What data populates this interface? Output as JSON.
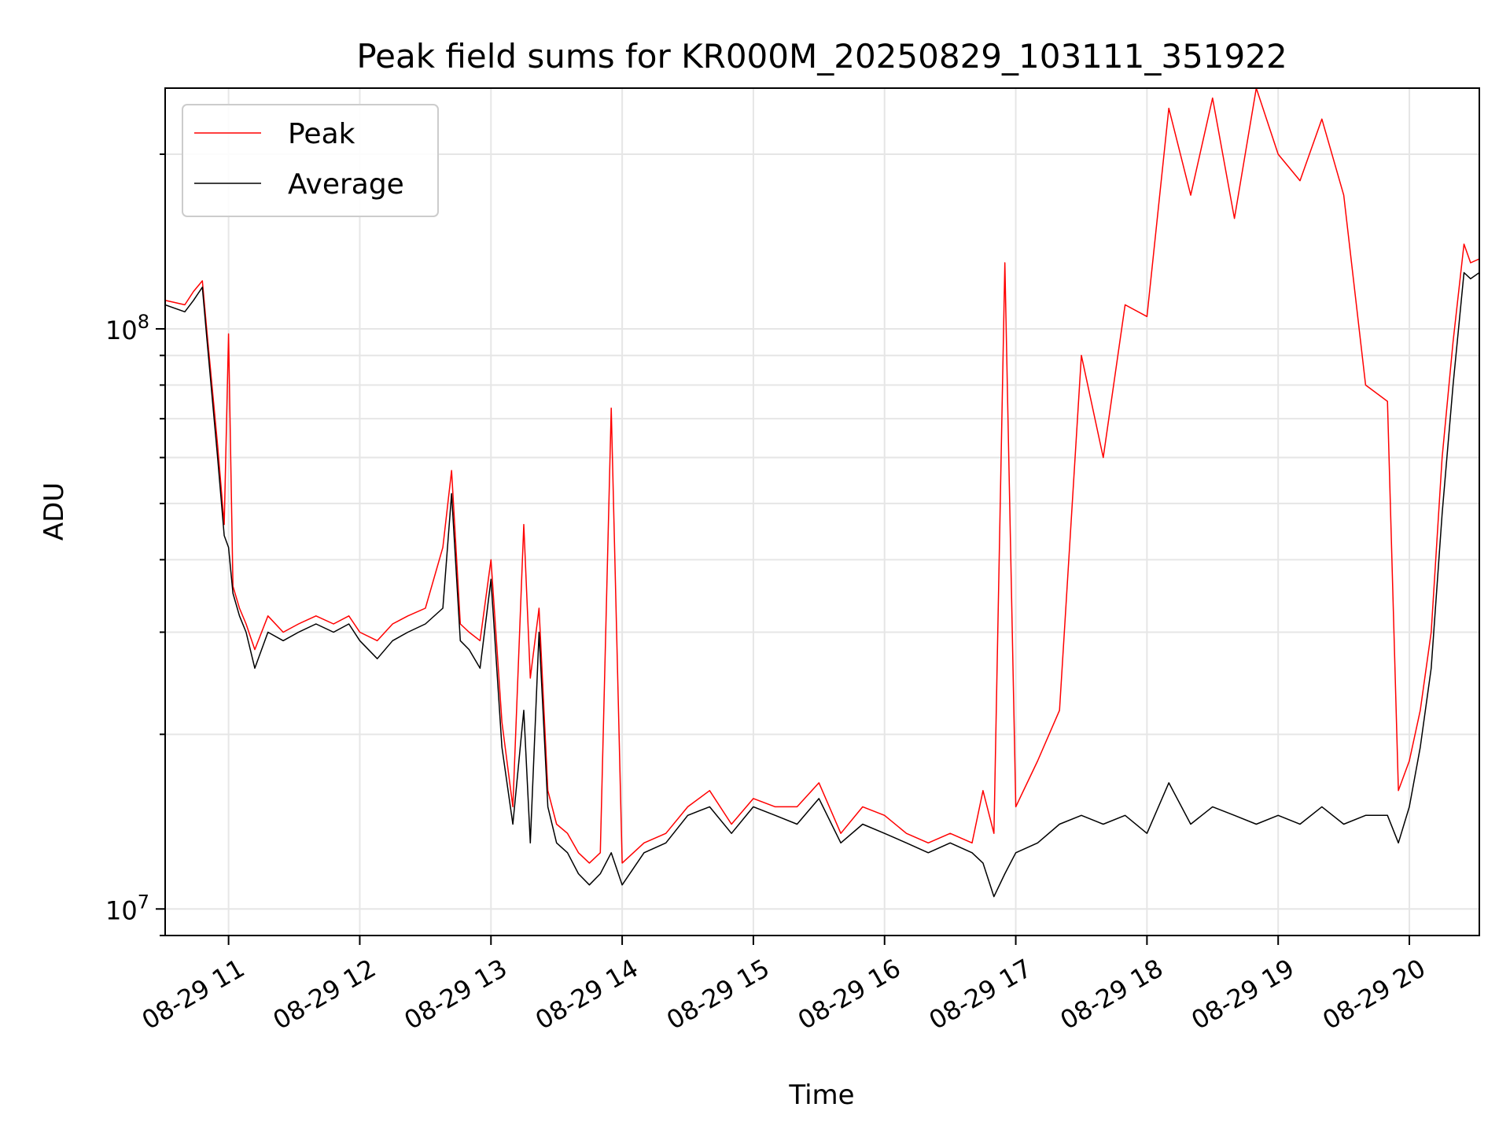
{
  "chart_data": {
    "type": "line",
    "title": "Peak field sums for KR000M_20250829_103111_351922",
    "xlabel": "Time",
    "ylabel": "ADU",
    "yscale": "log",
    "xlim": [
      "2025-08-29 10:31",
      "2025-08-29 20:32"
    ],
    "ylim": [
      9000000,
      260000000
    ],
    "x_tick_labels": [
      "08-29 11",
      "08-29 12",
      "08-29 13",
      "08-29 14",
      "08-29 15",
      "08-29 16",
      "08-29 17",
      "08-29 18",
      "08-29 19",
      "08-29 20"
    ],
    "y_tick_labels": [
      {
        "base": "10",
        "exp": "7"
      },
      {
        "base": "10",
        "exp": "8"
      }
    ],
    "grid": true,
    "legend": "upper left",
    "colors": {
      "peak": "#ff0000",
      "average": "#000000",
      "grid": "#e6e6e6"
    },
    "series": [
      {
        "name": "Peak",
        "x": [
          "10:31",
          "10:40",
          "10:44",
          "10:48",
          "10:50",
          "10:55",
          "10:58",
          "11:00",
          "11:02",
          "11:05",
          "11:08",
          "11:12",
          "11:18",
          "11:25",
          "11:32",
          "11:40",
          "11:48",
          "11:55",
          "12:00",
          "12:08",
          "12:15",
          "12:22",
          "12:30",
          "12:38",
          "12:42",
          "12:46",
          "12:50",
          "12:55",
          "13:00",
          "13:05",
          "13:10",
          "13:15",
          "13:18",
          "13:22",
          "13:26",
          "13:30",
          "13:35",
          "13:40",
          "13:45",
          "13:50",
          "13:55",
          "14:00",
          "14:10",
          "14:20",
          "14:30",
          "14:40",
          "14:50",
          "15:00",
          "15:10",
          "15:20",
          "15:30",
          "15:40",
          "15:50",
          "16:00",
          "16:10",
          "16:20",
          "16:30",
          "16:40",
          "16:45",
          "16:50",
          "16:55",
          "17:00",
          "17:10",
          "17:20",
          "17:30",
          "17:40",
          "17:50",
          "18:00",
          "18:10",
          "18:20",
          "18:30",
          "18:40",
          "18:50",
          "19:00",
          "19:10",
          "19:20",
          "19:30",
          "19:40",
          "19:50",
          "19:55",
          "20:00",
          "20:05",
          "20:10",
          "20:15",
          "20:20",
          "20:25",
          "20:28",
          "20:32"
        ],
        "y": [
          112000000,
          110000000,
          116000000,
          121000000,
          100000000,
          63000000,
          46000000,
          98000000,
          36000000,
          33000000,
          31000000,
          28000000,
          32000000,
          30000000,
          31000000,
          32000000,
          31000000,
          32000000,
          30000000,
          29000000,
          31000000,
          32000000,
          33000000,
          42000000,
          57000000,
          31000000,
          30000000,
          29000000,
          40000000,
          21000000,
          15000000,
          46000000,
          25000000,
          33000000,
          16000000,
          14000000,
          13500000,
          12500000,
          12000000,
          12500000,
          73000000,
          12000000,
          13000000,
          13500000,
          15000000,
          16000000,
          14000000,
          15500000,
          15000000,
          15000000,
          16500000,
          13500000,
          15000000,
          14500000,
          13500000,
          13000000,
          13500000,
          13000000,
          16000000,
          13500000,
          130000000,
          15000000,
          18000000,
          22000000,
          90000000,
          60000000,
          110000000,
          105000000,
          240000000,
          170000000,
          250000000,
          155000000,
          260000000,
          200000000,
          180000000,
          230000000,
          170000000,
          80000000,
          75000000,
          16000000,
          18000000,
          22000000,
          30000000,
          60000000,
          95000000,
          140000000,
          130000000,
          132000000
        ]
      },
      {
        "name": "Average",
        "x": [
          "10:31",
          "10:40",
          "10:44",
          "10:48",
          "10:50",
          "10:55",
          "10:58",
          "11:00",
          "11:02",
          "11:05",
          "11:08",
          "11:12",
          "11:18",
          "11:25",
          "11:32",
          "11:40",
          "11:48",
          "11:55",
          "12:00",
          "12:08",
          "12:15",
          "12:22",
          "12:30",
          "12:38",
          "12:42",
          "12:46",
          "12:50",
          "12:55",
          "13:00",
          "13:05",
          "13:10",
          "13:15",
          "13:18",
          "13:22",
          "13:26",
          "13:30",
          "13:35",
          "13:40",
          "13:45",
          "13:50",
          "13:55",
          "14:00",
          "14:10",
          "14:20",
          "14:30",
          "14:40",
          "14:50",
          "15:00",
          "15:10",
          "15:20",
          "15:30",
          "15:40",
          "15:50",
          "16:00",
          "16:10",
          "16:20",
          "16:30",
          "16:40",
          "16:45",
          "16:50",
          "16:55",
          "17:00",
          "17:10",
          "17:20",
          "17:30",
          "17:40",
          "17:50",
          "18:00",
          "18:10",
          "18:20",
          "18:30",
          "18:40",
          "18:50",
          "19:00",
          "19:10",
          "19:20",
          "19:30",
          "19:40",
          "19:50",
          "19:55",
          "20:00",
          "20:05",
          "20:10",
          "20:15",
          "20:20",
          "20:25",
          "20:28",
          "20:32"
        ],
        "y": [
          110000000,
          107000000,
          112000000,
          118000000,
          97000000,
          60000000,
          44000000,
          42000000,
          35000000,
          32000000,
          30000000,
          26000000,
          30000000,
          29000000,
          30000000,
          31000000,
          30000000,
          31000000,
          29000000,
          27000000,
          29000000,
          30000000,
          31000000,
          33000000,
          52000000,
          29000000,
          28000000,
          26000000,
          37000000,
          19000000,
          14000000,
          22000000,
          13000000,
          30000000,
          15000000,
          13000000,
          12500000,
          11500000,
          11000000,
          11500000,
          12500000,
          11000000,
          12500000,
          13000000,
          14500000,
          15000000,
          13500000,
          15000000,
          14500000,
          14000000,
          15500000,
          13000000,
          14000000,
          13500000,
          13000000,
          12500000,
          13000000,
          12500000,
          12000000,
          10500000,
          11500000,
          12500000,
          13000000,
          14000000,
          14500000,
          14000000,
          14500000,
          13500000,
          16500000,
          14000000,
          15000000,
          14500000,
          14000000,
          14500000,
          14000000,
          15000000,
          14000000,
          14500000,
          14500000,
          13000000,
          15000000,
          19000000,
          26000000,
          48000000,
          80000000,
          125000000,
          122000000,
          125000000
        ]
      }
    ]
  }
}
